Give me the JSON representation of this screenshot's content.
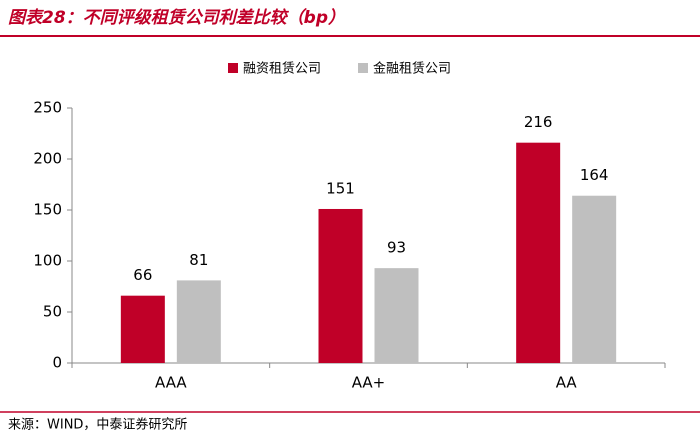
{
  "chart_data": {
    "type": "bar",
    "title": "图表28：不同评级租赁公司利差比较（bp）",
    "source": "来源：WIND，中泰证券研究所",
    "categories": [
      "AAA",
      "AA+",
      "AA"
    ],
    "series": [
      {
        "name": "融资租赁公司",
        "color": "#c00028",
        "values": [
          66,
          151,
          216
        ]
      },
      {
        "name": "金融租赁公司",
        "color": "#bfbfbf",
        "values": [
          81,
          93,
          164
        ]
      }
    ],
    "ylim": [
      0,
      250
    ],
    "yticks": [
      0,
      50,
      100,
      150,
      200,
      250
    ],
    "grid": false,
    "legend": "top"
  }
}
